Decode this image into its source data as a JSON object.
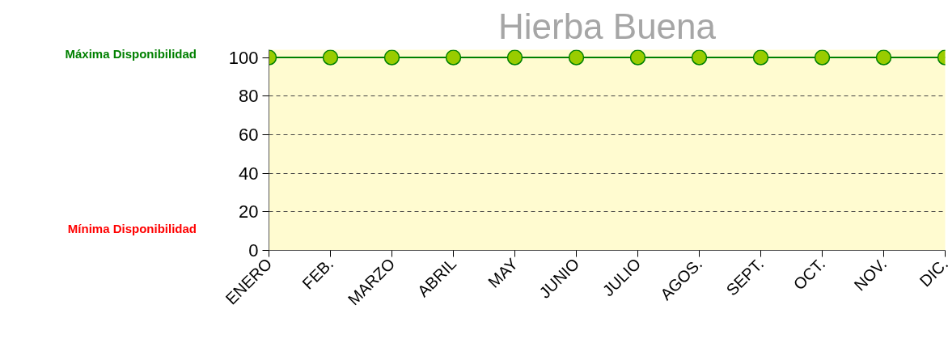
{
  "chart_data": {
    "type": "line",
    "title": "Hierba Buena",
    "categories": [
      "ENERO",
      "FEB.",
      "MARZO",
      "ABRIL",
      "MAY",
      "JUNIO",
      "JULIO",
      "AGOS.",
      "SEPT.",
      "OCT.",
      "NOV.",
      "DIC."
    ],
    "series": [
      {
        "color": "#99cc00",
        "values": [
          100,
          100,
          100,
          100,
          100,
          100,
          100,
          100,
          100,
          100,
          100,
          100
        ]
      }
    ],
    "ylim": [
      0,
      100
    ],
    "yticks": [
      0,
      20,
      40,
      60,
      80,
      100
    ],
    "grid": "y",
    "marker": "circle",
    "line_style": "solid",
    "annotations": [
      "Máxima Disponibilidad",
      "Mínima Disponibilidad"
    ]
  }
}
